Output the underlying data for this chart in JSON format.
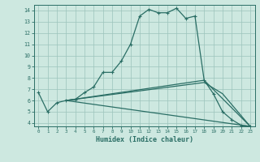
{
  "xlabel": "Humidex (Indice chaleur)",
  "xlim": [
    -0.5,
    23.5
  ],
  "ylim": [
    3.7,
    14.5
  ],
  "yticks": [
    4,
    5,
    6,
    7,
    8,
    9,
    10,
    11,
    12,
    13,
    14
  ],
  "xticks": [
    0,
    1,
    2,
    3,
    4,
    5,
    6,
    7,
    8,
    9,
    10,
    11,
    12,
    13,
    14,
    15,
    16,
    17,
    18,
    19,
    20,
    21,
    22,
    23
  ],
  "bg_color": "#cde8e0",
  "line_color": "#2a6e65",
  "grid_color": "#9cc4bc",
  "line1_x": [
    0,
    1,
    2,
    3,
    4,
    5,
    6,
    7,
    8,
    9,
    10,
    11,
    12,
    13,
    14,
    15,
    16,
    17,
    18,
    19,
    20,
    21,
    22,
    23
  ],
  "line1_y": [
    6.7,
    5.0,
    5.8,
    6.0,
    6.1,
    6.7,
    7.2,
    8.5,
    8.5,
    9.5,
    11.0,
    13.5,
    14.1,
    13.8,
    13.8,
    14.2,
    13.3,
    13.5,
    7.8,
    6.6,
    5.0,
    4.3,
    3.8,
    3.7
  ],
  "line2_x": [
    3,
    23
  ],
  "line2_y": [
    6.0,
    3.7
  ],
  "line3_x": [
    3,
    18,
    23
  ],
  "line3_y": [
    6.0,
    7.8,
    3.7
  ],
  "line4_x": [
    3,
    18,
    20,
    23
  ],
  "line4_y": [
    6.0,
    7.6,
    6.6,
    3.7
  ]
}
